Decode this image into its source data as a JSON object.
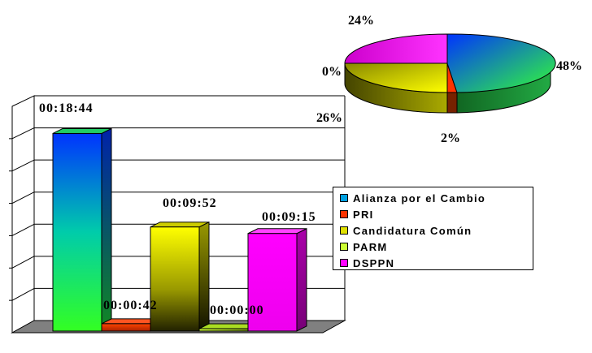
{
  "chart_data": [
    {
      "type": "bar",
      "categories": [
        "Alianza por el Cambio",
        "PRI",
        "Candidatura Común",
        "PARM",
        "DSPPN"
      ],
      "values_seconds": [
        1124,
        42,
        592,
        0,
        555
      ],
      "data_labels": [
        "00:18:44",
        "00:00:42",
        "00:09:52",
        "00:00:00",
        "00:09:15"
      ],
      "colors": [
        "#1f4fff",
        "#ff3300",
        "#ffff00",
        "#ccff33",
        "#ff00ff"
      ],
      "ylim": [
        0,
        1200
      ],
      "grid": true,
      "three_d": true
    },
    {
      "type": "pie",
      "categories": [
        "Alianza por el Cambio",
        "PRI",
        "Candidatura Común",
        "PARM",
        "DSPPN"
      ],
      "values": [
        48,
        2,
        26,
        0,
        24
      ],
      "labels": [
        "48%",
        "2%",
        "26%",
        "0%",
        "24%"
      ],
      "colors": [
        "#1f4fff",
        "#ff3300",
        "#ffff00",
        "#ccff33",
        "#ff00ff"
      ],
      "three_d": true
    }
  ],
  "legend": {
    "placement": "right",
    "items": [
      {
        "label": "Alianza por el Cambio",
        "color": "#00a0e0"
      },
      {
        "label": "PRI",
        "color": "#ff3300"
      },
      {
        "label": "Candidatura Común",
        "color": "#e0e000"
      },
      {
        "label": "PARM",
        "color": "#ccff33"
      },
      {
        "label": "DSPPN",
        "color": "#ff00ff"
      }
    ]
  }
}
